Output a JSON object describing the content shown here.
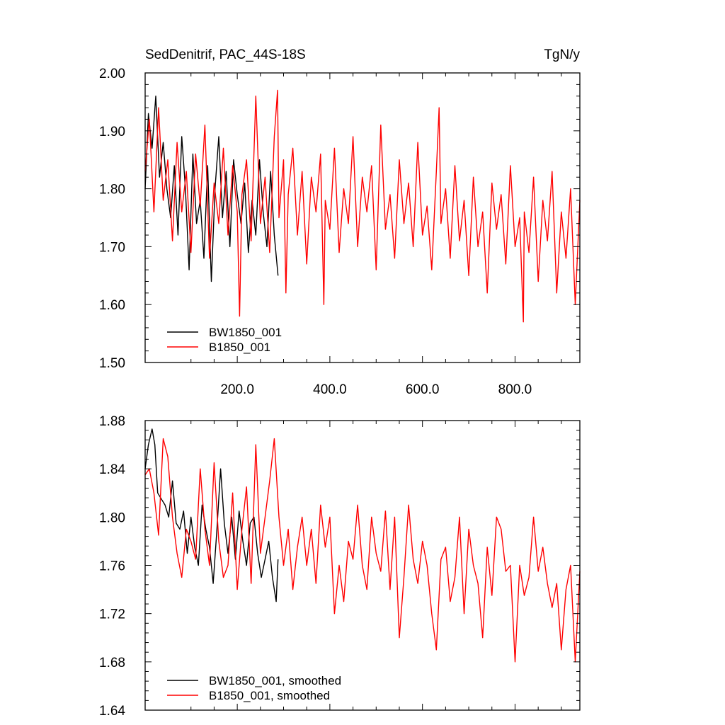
{
  "chart_data": [
    {
      "type": "line",
      "title_left": "SedDenitrif, PAC_44S-18S",
      "title_right": "TgN/y",
      "xlim": [
        1,
        940
      ],
      "ylim": [
        1.5,
        2.0
      ],
      "x_ticks": [
        200,
        400,
        600,
        800
      ],
      "x_tick_labels": [
        "200.0",
        "400.0",
        "600.0",
        "800.0"
      ],
      "y_ticks": [
        1.5,
        1.6,
        1.7,
        1.8,
        1.9,
        2.0
      ],
      "y_tick_labels": [
        "1.50",
        "1.60",
        "1.70",
        "1.80",
        "1.90",
        "2.00"
      ],
      "grid": false,
      "legend_position": "bottom-left",
      "series": [
        {
          "name": "BW1850_001",
          "color": "#000000",
          "x": [
            1,
            8,
            16,
            24,
            32,
            40,
            48,
            56,
            64,
            72,
            80,
            88,
            96,
            104,
            112,
            120,
            128,
            136,
            144,
            152,
            160,
            168,
            176,
            184,
            192,
            200,
            208,
            216,
            224,
            232,
            240,
            248,
            256,
            264,
            272,
            280,
            288
          ],
          "y": [
            1.8,
            1.93,
            1.87,
            1.96,
            1.82,
            1.88,
            1.8,
            1.75,
            1.84,
            1.72,
            1.89,
            1.8,
            1.66,
            1.86,
            1.74,
            1.78,
            1.68,
            1.84,
            1.64,
            1.8,
            1.89,
            1.75,
            1.83,
            1.7,
            1.85,
            1.79,
            1.74,
            1.81,
            1.69,
            1.78,
            1.72,
            1.85,
            1.76,
            1.7,
            1.83,
            1.72,
            1.65
          ]
        },
        {
          "name": "B1850_001",
          "color": "#ff0000",
          "x": [
            1,
            10,
            20,
            30,
            40,
            50,
            60,
            70,
            80,
            90,
            100,
            110,
            120,
            130,
            140,
            150,
            160,
            170,
            180,
            190,
            200,
            205,
            210,
            220,
            230,
            240,
            250,
            260,
            270,
            280,
            287,
            290,
            300,
            305,
            310,
            320,
            330,
            340,
            350,
            360,
            370,
            380,
            387,
            390,
            400,
            410,
            420,
            430,
            440,
            450,
            460,
            470,
            480,
            490,
            500,
            510,
            520,
            530,
            540,
            550,
            560,
            570,
            580,
            590,
            600,
            610,
            620,
            630,
            636,
            640,
            650,
            660,
            670,
            680,
            690,
            700,
            710,
            720,
            730,
            740,
            750,
            760,
            770,
            780,
            790,
            800,
            810,
            818,
            820,
            830,
            840,
            850,
            860,
            870,
            880,
            890,
            900,
            910,
            920,
            930,
            940
          ],
          "y": [
            1.83,
            1.92,
            1.76,
            1.94,
            1.78,
            1.85,
            1.71,
            1.88,
            1.76,
            1.83,
            1.69,
            1.86,
            1.77,
            1.91,
            1.68,
            1.81,
            1.74,
            1.87,
            1.72,
            1.84,
            1.76,
            1.58,
            1.79,
            1.85,
            1.71,
            1.96,
            1.74,
            1.82,
            1.69,
            1.89,
            1.97,
            1.75,
            1.85,
            1.62,
            1.79,
            1.87,
            1.72,
            1.83,
            1.67,
            1.82,
            1.76,
            1.86,
            1.6,
            1.78,
            1.73,
            1.87,
            1.69,
            1.8,
            1.74,
            1.89,
            1.7,
            1.82,
            1.76,
            1.84,
            1.66,
            1.91,
            1.73,
            1.79,
            1.68,
            1.85,
            1.74,
            1.81,
            1.7,
            1.88,
            1.72,
            1.77,
            1.66,
            1.83,
            1.94,
            1.74,
            1.8,
            1.68,
            1.84,
            1.71,
            1.78,
            1.65,
            1.82,
            1.7,
            1.76,
            1.62,
            1.81,
            1.73,
            1.79,
            1.67,
            1.84,
            1.7,
            1.75,
            1.57,
            1.76,
            1.69,
            1.82,
            1.64,
            1.78,
            1.71,
            1.83,
            1.62,
            1.76,
            1.68,
            1.8,
            1.6,
            1.78
          ]
        }
      ]
    },
    {
      "type": "line",
      "xlim": [
        1,
        940
      ],
      "ylim": [
        1.64,
        1.88
      ],
      "x_ticks": [
        200,
        400,
        600,
        800
      ],
      "y_ticks": [
        1.64,
        1.68,
        1.72,
        1.76,
        1.8,
        1.84,
        1.88
      ],
      "y_tick_labels": [
        "1.64",
        "1.68",
        "1.72",
        "1.76",
        "1.80",
        "1.84",
        "1.88"
      ],
      "grid": false,
      "legend_position": "bottom-left",
      "series": [
        {
          "name": "BW1850_001, smoothed",
          "color": "#000000",
          "x": [
            1,
            8,
            16,
            22,
            28,
            36,
            44,
            52,
            60,
            68,
            76,
            84,
            92,
            100,
            108,
            116,
            124,
            132,
            140,
            148,
            156,
            164,
            172,
            180,
            188,
            196,
            204,
            212,
            220,
            228,
            236,
            244,
            252,
            260,
            268,
            276,
            284,
            288
          ],
          "y": [
            1.84,
            1.86,
            1.873,
            1.86,
            1.82,
            1.815,
            1.81,
            1.8,
            1.83,
            1.795,
            1.79,
            1.805,
            1.77,
            1.8,
            1.775,
            1.76,
            1.81,
            1.79,
            1.775,
            1.745,
            1.79,
            1.84,
            1.795,
            1.77,
            1.8,
            1.765,
            1.805,
            1.78,
            1.76,
            1.795,
            1.8,
            1.77,
            1.75,
            1.765,
            1.78,
            1.75,
            1.73,
            1.765
          ]
        },
        {
          "name": "B1850_001, smoothed",
          "color": "#ff0000",
          "x": [
            1,
            10,
            20,
            30,
            40,
            50,
            60,
            70,
            80,
            90,
            100,
            110,
            120,
            130,
            140,
            150,
            160,
            170,
            180,
            190,
            200,
            210,
            220,
            230,
            240,
            250,
            260,
            270,
            280,
            290,
            300,
            310,
            320,
            330,
            340,
            350,
            360,
            370,
            380,
            390,
            400,
            410,
            420,
            430,
            440,
            450,
            460,
            470,
            480,
            490,
            500,
            510,
            520,
            530,
            540,
            550,
            560,
            570,
            580,
            590,
            600,
            610,
            620,
            630,
            640,
            650,
            660,
            670,
            680,
            690,
            700,
            710,
            720,
            730,
            740,
            750,
            760,
            770,
            780,
            790,
            800,
            810,
            820,
            830,
            840,
            850,
            860,
            870,
            880,
            890,
            900,
            910,
            920,
            930,
            940
          ],
          "y": [
            1.835,
            1.84,
            1.82,
            1.785,
            1.865,
            1.85,
            1.8,
            1.77,
            1.75,
            1.79,
            1.78,
            1.765,
            1.84,
            1.79,
            1.76,
            1.845,
            1.78,
            1.75,
            1.76,
            1.82,
            1.74,
            1.79,
            1.825,
            1.745,
            1.86,
            1.77,
            1.8,
            1.83,
            1.865,
            1.8,
            1.76,
            1.79,
            1.74,
            1.775,
            1.8,
            1.76,
            1.79,
            1.745,
            1.81,
            1.775,
            1.8,
            1.72,
            1.76,
            1.73,
            1.78,
            1.765,
            1.81,
            1.76,
            1.74,
            1.8,
            1.77,
            1.755,
            1.805,
            1.74,
            1.8,
            1.7,
            1.75,
            1.81,
            1.765,
            1.745,
            1.78,
            1.76,
            1.72,
            1.69,
            1.765,
            1.775,
            1.73,
            1.75,
            1.8,
            1.72,
            1.79,
            1.76,
            1.745,
            1.7,
            1.775,
            1.735,
            1.8,
            1.79,
            1.755,
            1.76,
            1.68,
            1.76,
            1.735,
            1.75,
            1.8,
            1.755,
            1.775,
            1.745,
            1.725,
            1.745,
            1.69,
            1.74,
            1.76,
            1.68,
            1.755
          ]
        }
      ]
    }
  ]
}
